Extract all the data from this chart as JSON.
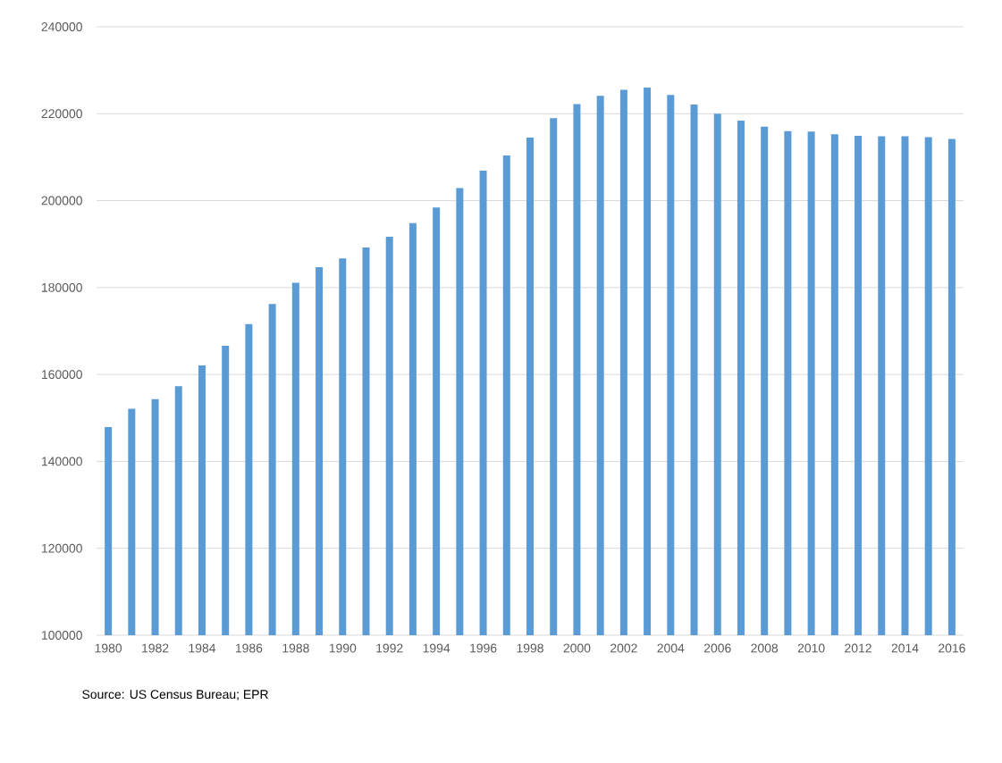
{
  "chart_data": {
    "type": "bar",
    "categories": [
      "1980",
      null,
      "1982",
      null,
      "1984",
      null,
      "1986",
      null,
      "1988",
      null,
      "1990",
      null,
      "1992",
      null,
      "1994",
      null,
      "1996",
      null,
      "1998",
      null,
      "2000",
      null,
      "2002",
      null,
      "2004",
      null,
      "2006",
      null,
      "2008",
      null,
      "2010",
      null,
      "2012",
      null,
      "2014",
      null,
      "2016"
    ],
    "values": [
      147900,
      152100,
      154300,
      157300,
      162100,
      166600,
      171600,
      176200,
      181100,
      184700,
      186700,
      189200,
      191700,
      194800,
      198400,
      202900,
      206900,
      210400,
      214500,
      219000,
      222200,
      224100,
      225500,
      226000,
      224300,
      222100,
      220000,
      218400,
      217000,
      216000,
      215900,
      215300,
      214900,
      214800,
      214800,
      214600,
      214200
    ],
    "color": "#5b9bd5",
    "ylim": [
      100000,
      240000
    ],
    "yticks": [
      100000,
      120000,
      140000,
      160000,
      180000,
      200000,
      220000,
      240000
    ],
    "grid": "y",
    "annotations": [
      "Source: US Census Bureau; EPR"
    ]
  }
}
